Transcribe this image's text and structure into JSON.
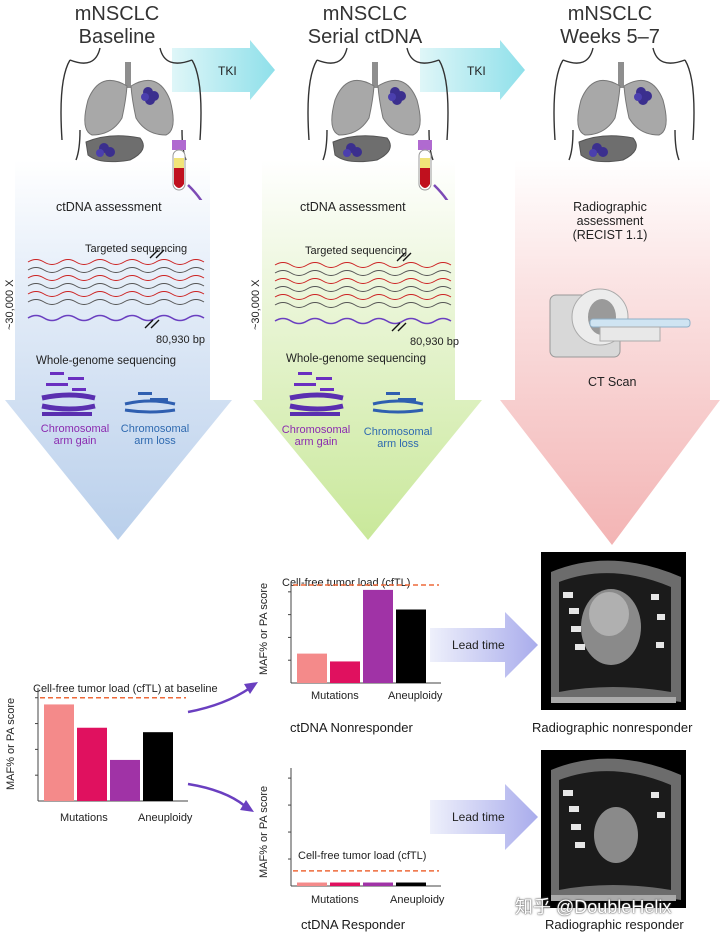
{
  "columns": [
    {
      "title_line1": "mNSCLC",
      "title_line2": "Baseline"
    },
    {
      "title_line1": "mNSCLC",
      "title_line2": "Serial ctDNA"
    },
    {
      "title_line1": "mNSCLC",
      "title_line2": "Weeks 5–7"
    }
  ],
  "arrows": {
    "tki_1": "TKI",
    "tki_2": "TKI"
  },
  "baseline": {
    "assessment": "ctDNA assessment",
    "targeted": "Targeted sequencing",
    "depth": "~30,000 X",
    "bp": "80,930 bp",
    "wgs": "Whole-genome sequencing",
    "gain": "Chromosomal arm gain",
    "loss": "Chromosomal arm loss"
  },
  "serial": {
    "assessment": "ctDNA assessment",
    "targeted": "Targeted sequencing",
    "depth": "~30,000 X",
    "bp": "80,930 bp",
    "wgs": "Whole-genome sequencing",
    "gain": "Chromosomal arm gain",
    "loss": "Chromosomal arm loss"
  },
  "weeks": {
    "assessment_line1": "Radiographic",
    "assessment_line2": "assessment",
    "assessment_line3": "(RECIST 1.1)",
    "ct": "CT Scan"
  },
  "charts": {
    "baseline": {
      "cftl": "Cell-free tumor  load (cfTL) at baseline",
      "ylabel": "MAF% or PA score",
      "x_mutations": "Mutations",
      "x_aneuploidy": "Aneuploidy"
    },
    "nonresponder": {
      "cftl": "Cell-free tumor  load (cfTL)",
      "ylabel": "MAF%  or PA score",
      "x_mutations": "Mutations",
      "x_aneuploidy": "Aneuploidy",
      "caption": "ctDNA Nonresponder"
    },
    "responder": {
      "cftl": "Cell-free tumor  load  (cfTL)",
      "ylabel": "MAF%  or PA score",
      "x_mutations": "Mutations",
      "x_aneuploidy": "Aneuploidy",
      "caption": "ctDNA Responder"
    }
  },
  "lead_time_1": "Lead time",
  "lead_time_2": "Lead time",
  "radiographic_nonresponder": "Radiographic nonresponder",
  "radiographic_responder": "Radiographic responder",
  "watermark": "知乎 @DoubleHelix",
  "chart_data": [
    {
      "type": "bar",
      "ylabel": "MAF% or PA score",
      "categories": [
        "Mutations",
        "Mutations",
        "Mutations",
        "Aneuploidy"
      ],
      "values": [
        0.87,
        0.66,
        0.37,
        0.62
      ],
      "threshold": 0.93,
      "colors": [
        "#f48a8a",
        "#e0115f",
        "#a033a6",
        "#000000"
      ]
    },
    {
      "type": "bar",
      "ylabel": "MAF%  or PA score",
      "categories": [
        "Mutations",
        "Mutations",
        "Mutations",
        "Aneuploidy"
      ],
      "values": [
        0.3,
        0.22,
        0.95,
        0.75
      ],
      "threshold": 1.0,
      "colors": [
        "#f48a8a",
        "#e0115f",
        "#a033a6",
        "#000000"
      ]
    },
    {
      "type": "bar",
      "ylabel": "MAF%  or PA score",
      "categories": [
        "Mutations",
        "Mutations",
        "Mutations",
        "Aneuploidy"
      ],
      "values": [
        0.03,
        0.03,
        0.03,
        0.03
      ],
      "threshold": 0.13,
      "colors": [
        "#f48a8a",
        "#e0115f",
        "#a033a6",
        "#000000"
      ]
    }
  ]
}
